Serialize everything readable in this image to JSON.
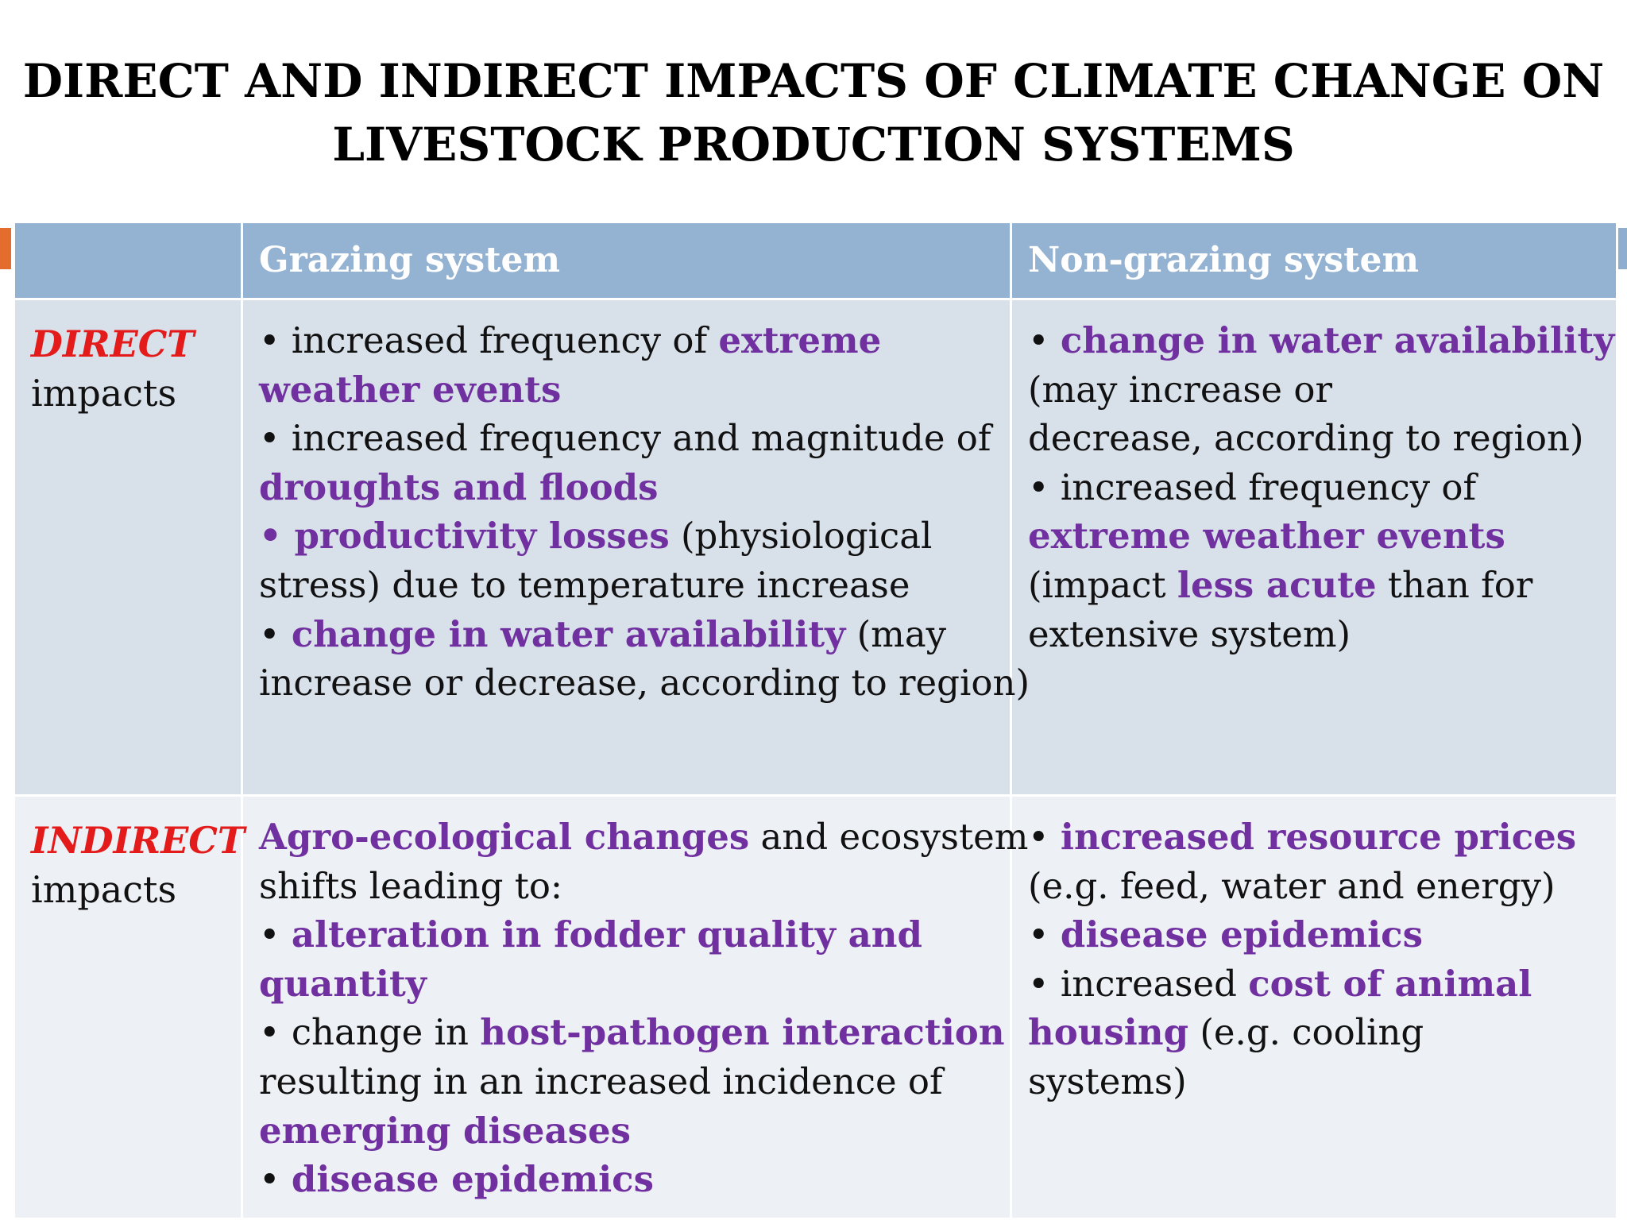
{
  "title": {
    "line1": "DIRECT AND INDIRECT IMPACTS OF CLIMATE CHANGE ON",
    "line2": "LIVESTOCK PRODUCTION SYSTEMS"
  },
  "colors": {
    "header_bg": "#94b2d1",
    "direct_row_bg": "#d8e0ea",
    "indirect_row_bg": "#edf1f6",
    "highlight_purple": "#7030a0",
    "label_red": "#e41b1b",
    "accent_orange": "#e46c2d"
  },
  "table": {
    "headers": [
      "",
      "Grazing system",
      "Non-grazing system"
    ],
    "rows": [
      {
        "label_keyword": "DIRECT",
        "label_rest": "impacts",
        "grazing": [
          [
            {
              "t": "• ",
              "b": false
            },
            {
              "t": "increased frequency of ",
              "b": false
            },
            {
              "t": "extreme",
              "b": true
            }
          ],
          [
            {
              "t": "weather events",
              "b": true
            }
          ],
          [
            {
              "t": "• ",
              "b": false
            },
            {
              "t": "increased frequency and magnitude of",
              "b": false
            }
          ],
          [
            {
              "t": "droughts and floods",
              "b": true
            }
          ],
          [
            {
              "t": "• ",
              "b": true
            },
            {
              "t": "productivity losses",
              "b": true
            },
            {
              "t": " (physiological",
              "b": false
            }
          ],
          [
            {
              "t": "stress) due to temperature increase",
              "b": false
            }
          ],
          [
            {
              "t": "• ",
              "b": false
            },
            {
              "t": "change in water availability",
              "b": true
            },
            {
              "t": " (may",
              "b": false
            }
          ],
          [
            {
              "t": "increase or decrease, according to region)",
              "b": false
            }
          ]
        ],
        "non_grazing": [
          [
            {
              "t": "• ",
              "b": false
            },
            {
              "t": "change in water availability",
              "b": true
            }
          ],
          [
            {
              "t": "(may increase or",
              "b": false
            }
          ],
          [
            {
              "t": "decrease, according to region)",
              "b": false
            }
          ],
          [
            {
              "t": "• ",
              "b": false
            },
            {
              "t": "increased frequency of",
              "b": false
            }
          ],
          [
            {
              "t": "extreme weather events",
              "b": true
            }
          ],
          [
            {
              "t": "(impact ",
              "b": false
            },
            {
              "t": "less acute",
              "b": true
            },
            {
              "t": " than for",
              "b": false
            }
          ],
          [
            {
              "t": "extensive system)",
              "b": false
            }
          ]
        ]
      },
      {
        "label_keyword": "INDIRECT",
        "label_rest": "impacts",
        "grazing": [
          [
            {
              "t": "Agro-ecological changes",
              "b": true
            },
            {
              "t": " and ecosystem",
              "b": false
            }
          ],
          [
            {
              "t": "shifts leading to:",
              "b": false
            }
          ],
          [
            {
              "t": "• ",
              "b": false
            },
            {
              "t": "alteration in fodder quality and",
              "b": true
            }
          ],
          [
            {
              "t": "quantity",
              "b": true
            }
          ],
          [
            {
              "t": "• ",
              "b": false
            },
            {
              "t": "change in ",
              "b": false
            },
            {
              "t": "host-pathogen interaction",
              "b": true
            }
          ],
          [
            {
              "t": "resulting in an increased incidence of",
              "b": false
            }
          ],
          [
            {
              "t": "emerging diseases",
              "b": true
            }
          ],
          [
            {
              "t": "• ",
              "b": false
            },
            {
              "t": "disease epidemics",
              "b": true
            }
          ]
        ],
        "non_grazing": [
          [
            {
              "t": "• ",
              "b": false
            },
            {
              "t": "increased resource prices",
              "b": true
            }
          ],
          [
            {
              "t": "(e.g. feed, water and energy)",
              "b": false
            }
          ],
          [
            {
              "t": "• ",
              "b": false
            },
            {
              "t": "disease epidemics",
              "b": true
            }
          ],
          [
            {
              "t": "• ",
              "b": false
            },
            {
              "t": "increased ",
              "b": false
            },
            {
              "t": "cost of animal",
              "b": true
            }
          ],
          [
            {
              "t": "housing",
              "b": true
            },
            {
              "t": " (e.g. cooling",
              "b": false
            }
          ],
          [
            {
              "t": "systems)",
              "b": false
            }
          ]
        ]
      }
    ]
  }
}
